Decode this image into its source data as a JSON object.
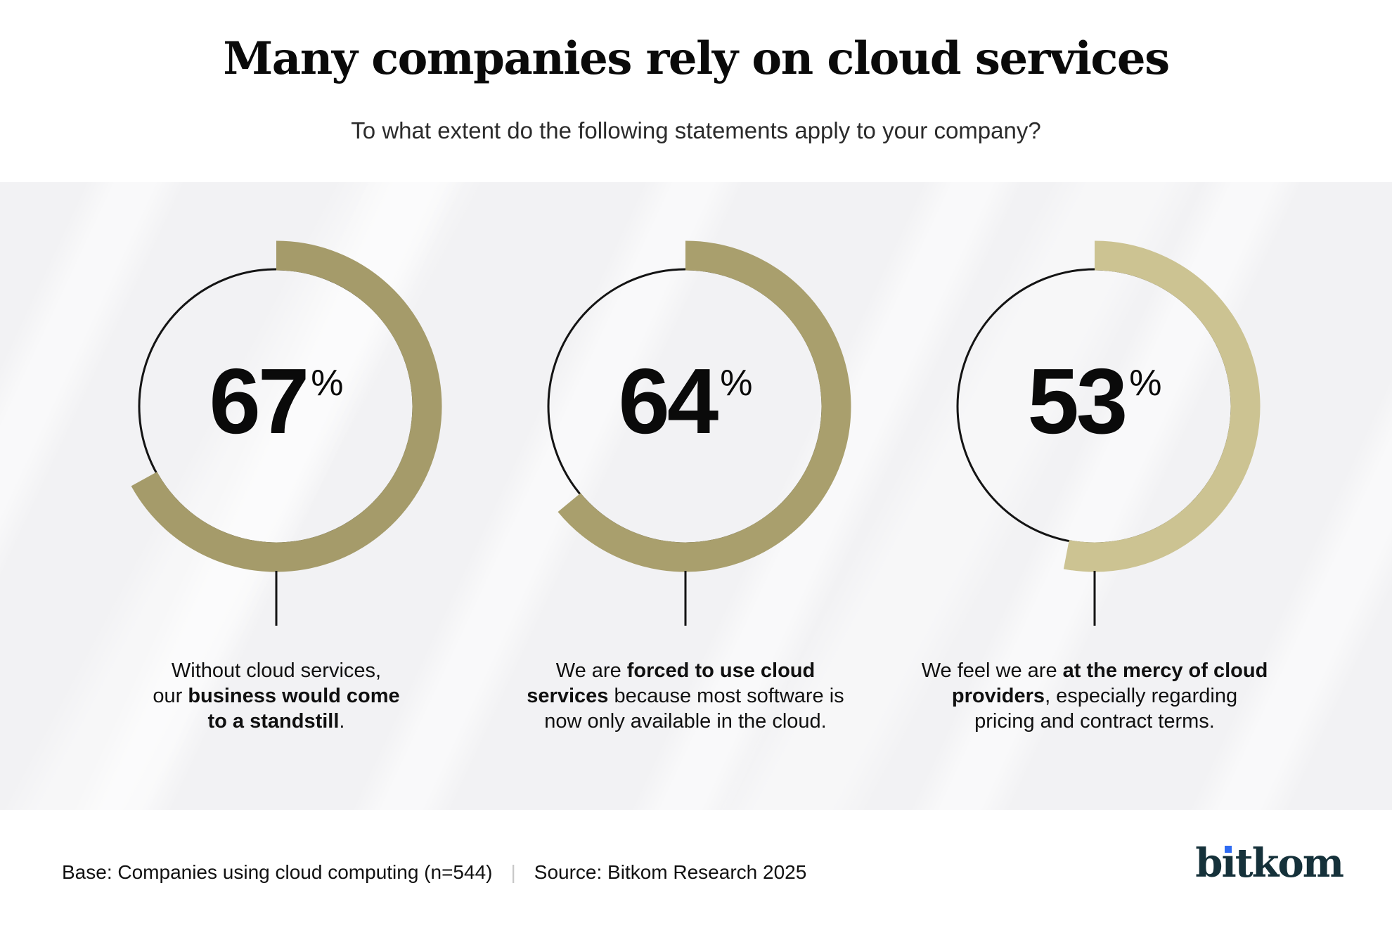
{
  "title": "Many companies rely on cloud services",
  "subtitle": "To what extent do the following statements apply to your company?",
  "chart_data": {
    "type": "donut",
    "unit": "%",
    "start_angle_deg": 0,
    "direction": "clockwise",
    "ring_color": "#141414",
    "series": [
      {
        "value": 67,
        "color": "#a59b6a",
        "caption_plain": "Without cloud services, our business would come to a standstill.",
        "caption_segments": [
          {
            "text": "Without cloud services,",
            "bold": false
          },
          {
            "break": true
          },
          {
            "text": "our ",
            "bold": false
          },
          {
            "text": "business would come",
            "bold": true
          },
          {
            "break": true
          },
          {
            "text": "to a standstill",
            "bold": true
          },
          {
            "text": ".",
            "bold": false
          }
        ]
      },
      {
        "value": 64,
        "color": "#a99f6d",
        "caption_plain": "We are forced to use cloud services because most software is now only available in the cloud.",
        "caption_segments": [
          {
            "text": "We are ",
            "bold": false
          },
          {
            "text": "forced to use cloud",
            "bold": true
          },
          {
            "break": true
          },
          {
            "text": "services",
            "bold": true
          },
          {
            "text": " because most software is",
            "bold": false
          },
          {
            "break": true
          },
          {
            "text": "now only available in the cloud.",
            "bold": false
          }
        ]
      },
      {
        "value": 53,
        "color": "#ccc392",
        "caption_plain": "We feel we are at the mercy of cloud providers, especially regarding pricing and contract terms.",
        "caption_segments": [
          {
            "text": "We feel we are ",
            "bold": false
          },
          {
            "text": "at the mercy of cloud",
            "bold": true
          },
          {
            "break": true
          },
          {
            "text": "providers",
            "bold": true
          },
          {
            "text": ", especially regarding",
            "bold": false
          },
          {
            "break": true
          },
          {
            "text": "pricing and contract terms.",
            "bold": false
          }
        ]
      }
    ]
  },
  "footer": {
    "base": "Base: Companies using cloud computing (n=544)",
    "divider": "|",
    "source": "Source: Bitkom Research 2025",
    "logo_text": "bitkom",
    "logo_parts": {
      "pre": "b",
      "i": "ı",
      "post": "tkom"
    },
    "logo_color": "#15313a",
    "logo_dot_color": "#2e6bf2"
  }
}
